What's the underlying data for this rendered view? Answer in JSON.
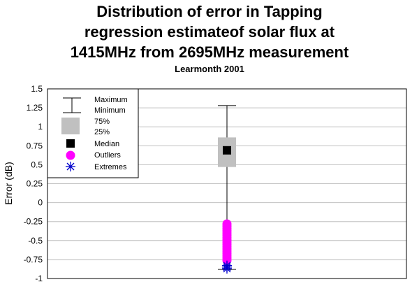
{
  "chart_data": {
    "type": "box",
    "title_lines": [
      "Distribution of error in Tapping",
      "regression estimateof solar flux at",
      "1415MHz from 2695MHz measurement"
    ],
    "subtitle": "Learmonth 2001",
    "xlabel": "",
    "ylabel": "Error (dB)",
    "ylim": [
      -1,
      1.5
    ],
    "yticks": [
      "1.5",
      "1.25",
      "1",
      "0.75",
      "0.5",
      "0.25",
      "0",
      "-0.25",
      "-0.5",
      "-0.75",
      "-1"
    ],
    "ytick_values": [
      1.5,
      1.25,
      1,
      0.75,
      0.5,
      0.25,
      0,
      -0.25,
      -0.5,
      -0.75,
      -1
    ],
    "grid": true,
    "legend_position": "top-left",
    "legend": {
      "maximum": "Maximum",
      "minimum": "Minimum",
      "q75": "75%",
      "q25": "25%",
      "median": "Median",
      "outliers": "Outliers",
      "extremes": "Extremes"
    },
    "box": {
      "maximum": 1.28,
      "minimum": -0.88,
      "q75": 0.86,
      "q25": 0.47,
      "median": 0.69,
      "outliers": [
        -0.28,
        -0.31,
        -0.34,
        -0.37,
        -0.4,
        -0.43,
        -0.46,
        -0.49,
        -0.52,
        -0.55,
        -0.58,
        -0.61,
        -0.64,
        -0.67,
        -0.7,
        -0.73,
        -0.76
      ],
      "extremes": [
        -0.83,
        -0.85,
        -0.87
      ]
    },
    "colors": {
      "box": "#c0c0c0",
      "median": "#000000",
      "outliers": "#ff00ff",
      "extremes": "#0000cc",
      "grid": "#c0c0c0",
      "plot_background": "#ffffff"
    }
  }
}
